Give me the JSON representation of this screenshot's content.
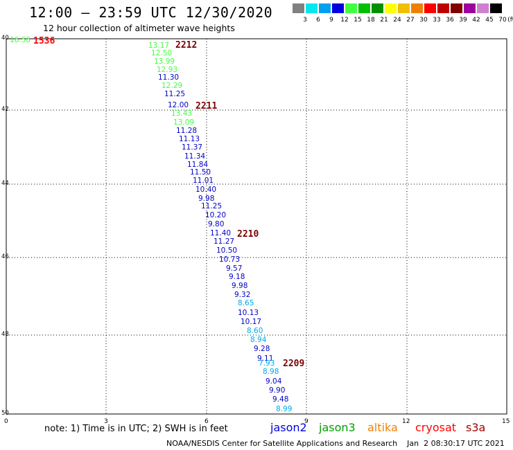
{
  "header": {
    "title": "12:00 — 23:59 UTC 12/30/2020",
    "subtitle": "12 hour collection of altimeter wave heights"
  },
  "colorbar": {
    "unit": "(ft)",
    "entries": [
      {
        "label": "3",
        "color": "#808080"
      },
      {
        "label": "6",
        "color": "#00e8f0"
      },
      {
        "label": "9",
        "color": "#00a0f0"
      },
      {
        "label": "12",
        "color": "#0000e0"
      },
      {
        "label": "15",
        "color": "#40ff40"
      },
      {
        "label": "18",
        "color": "#00c000"
      },
      {
        "label": "21",
        "color": "#009000"
      },
      {
        "label": "24",
        "color": "#ffff00"
      },
      {
        "label": "27",
        "color": "#f0c000"
      },
      {
        "label": "30",
        "color": "#f08000"
      },
      {
        "label": "33",
        "color": "#ff0000"
      },
      {
        "label": "36",
        "color": "#c00000"
      },
      {
        "label": "39",
        "color": "#800000"
      },
      {
        "label": "42",
        "color": "#a000a0"
      },
      {
        "label": "45",
        "color": "#d080d0"
      },
      {
        "label": "70",
        "color": "#000000"
      }
    ]
  },
  "map": {
    "lat_ticks": [
      "40",
      "42",
      "44",
      "46",
      "48",
      "50"
    ],
    "lon_ticks": [
      "0",
      "3",
      "6",
      "9",
      "12",
      "15"
    ],
    "corner_reading": {
      "value": "16.56",
      "color": "#40ff40",
      "pass": "1536",
      "pass_color": "#ff0000"
    },
    "passes": [
      "2212",
      "2211",
      "2210",
      "2209"
    ],
    "readings": [
      {
        "v": "13.17",
        "c": "#40ff40"
      },
      {
        "v": "12.50",
        "c": "#40ff40"
      },
      {
        "v": "13.99",
        "c": "#40ff40"
      },
      {
        "v": "12.93",
        "c": "#40ff40"
      },
      {
        "v": "11.30",
        "c": "#0000c8"
      },
      {
        "v": "12.29",
        "c": "#40ff40"
      },
      {
        "v": "11.25",
        "c": "#0000c8"
      },
      {
        "v": "12.00",
        "c": "#0000c8"
      },
      {
        "v": "13.43",
        "c": "#40ff40"
      },
      {
        "v": "13.09",
        "c": "#40ff40"
      },
      {
        "v": "11.28",
        "c": "#0000c8"
      },
      {
        "v": "11.13",
        "c": "#0000c8"
      },
      {
        "v": "11.37",
        "c": "#0000c8"
      },
      {
        "v": "11.34",
        "c": "#0000c8"
      },
      {
        "v": "11.84",
        "c": "#0000c8"
      },
      {
        "v": "11.50",
        "c": "#0000c8"
      },
      {
        "v": "11.01",
        "c": "#0000c8"
      },
      {
        "v": "10.40",
        "c": "#0000c8"
      },
      {
        "v": "9.98",
        "c": "#0000c8"
      },
      {
        "v": "11.25",
        "c": "#0000c8"
      },
      {
        "v": "10.20",
        "c": "#0000c8"
      },
      {
        "v": "9.80",
        "c": "#0000c8"
      },
      {
        "v": "11.40",
        "c": "#0000c8"
      },
      {
        "v": "11.27",
        "c": "#0000c8"
      },
      {
        "v": "10.50",
        "c": "#0000c8"
      },
      {
        "v": "10.73",
        "c": "#0000c8"
      },
      {
        "v": "9.57",
        "c": "#0000c8"
      },
      {
        "v": "9.18",
        "c": "#0000c8"
      },
      {
        "v": "9.98",
        "c": "#0000c8"
      },
      {
        "v": "9.32",
        "c": "#0000c8"
      },
      {
        "v": "8.65",
        "c": "#00a8e8"
      },
      {
        "v": "10.13",
        "c": "#0000c8"
      },
      {
        "v": "10.17",
        "c": "#0000c8"
      },
      {
        "v": "8.60",
        "c": "#00a8e8"
      },
      {
        "v": "8.94",
        "c": "#00a8e8"
      },
      {
        "v": "9.28",
        "c": "#0000c8"
      },
      {
        "v": "9.11",
        "c": "#0000c8"
      },
      {
        "v": "7.93",
        "c": "#00a8e8"
      },
      {
        "v": "8.98",
        "c": "#00a8e8"
      },
      {
        "v": "9.04",
        "c": "#0000c8"
      },
      {
        "v": "9.90",
        "c": "#0000c8"
      },
      {
        "v": "9.48",
        "c": "#0000c8"
      },
      {
        "v": "8.99",
        "c": "#00a8e8"
      }
    ]
  },
  "footer": {
    "note": "note:  1) Time is in UTC;  2) SWH is in feet",
    "satellites": [
      {
        "name": "jason2",
        "color": "#0000e0"
      },
      {
        "name": "jason3",
        "color": "#00a000"
      },
      {
        "name": "altika",
        "color": "#f08000"
      },
      {
        "name": "cryosat",
        "color": "#ff0000"
      },
      {
        "name": "s3a",
        "color": "#a00000"
      }
    ],
    "credit": "NOAA/NESDIS Center for Satellite Applications and Research    Jan  2 08:30:17 UTC 2021"
  }
}
